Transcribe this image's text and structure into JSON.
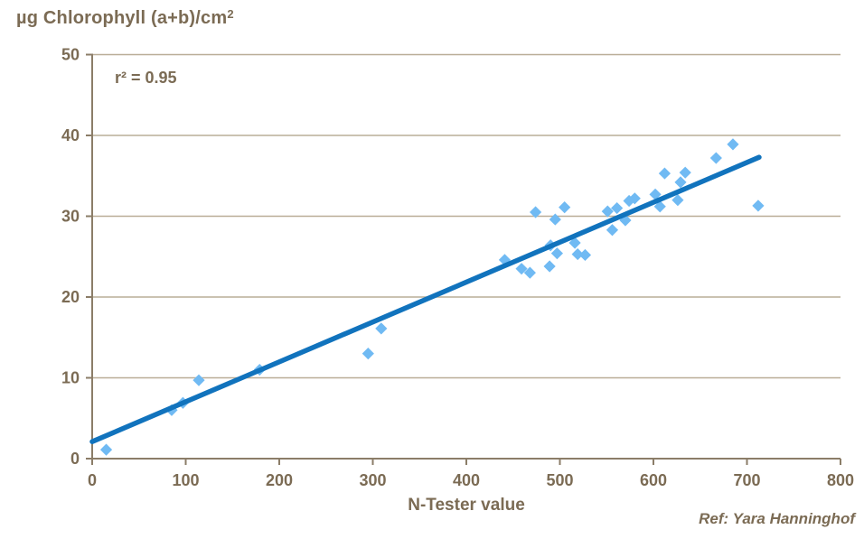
{
  "header": {
    "title_main": "µg Chlorophyll (a+b)/cm",
    "title_superscript": "2"
  },
  "annotation": {
    "r_squared": "r² = 0.95"
  },
  "footer": {
    "reference": "Ref: Yara Hanninghof"
  },
  "colors": {
    "text": "#7b6b54",
    "axis": "#8b7d68",
    "grid": "#b9ad97",
    "marker": "#70baf3",
    "trend": "#1173bd",
    "background": "#ffffff"
  },
  "chart_data": {
    "type": "scatter",
    "title": "µg Chlorophyll (a+b)/cm²",
    "xlabel": "N-Tester value",
    "ylabel": "µg Chlorophyll (a+b)/cm²",
    "xlim": [
      0,
      800
    ],
    "ylim": [
      0,
      50
    ],
    "x_ticks": [
      0,
      100,
      200,
      300,
      400,
      500,
      600,
      700,
      800
    ],
    "y_ticks": [
      0,
      10,
      20,
      30,
      40,
      50
    ],
    "grid": "horizontal-only",
    "legend": "none",
    "annotation_text": "r² = 0.95",
    "reference_text": "Ref: Yara Hanninghof",
    "series": [
      {
        "name": "chlorophyll-measurements",
        "type": "scatter",
        "marker": "diamond",
        "color": "#70baf3",
        "points": [
          [
            15,
            1.1
          ],
          [
            85,
            6.0
          ],
          [
            97,
            6.9
          ],
          [
            114,
            9.7
          ],
          [
            179,
            11.0
          ],
          [
            295,
            13.0
          ],
          [
            309,
            16.1
          ],
          [
            441,
            24.6
          ],
          [
            459,
            23.5
          ],
          [
            468,
            23.0
          ],
          [
            474,
            30.5
          ],
          [
            489,
            23.8
          ],
          [
            490,
            26.4
          ],
          [
            495,
            29.6
          ],
          [
            497,
            25.4
          ],
          [
            505,
            31.1
          ],
          [
            516,
            26.7
          ],
          [
            519,
            25.3
          ],
          [
            527,
            25.2
          ],
          [
            551,
            30.6
          ],
          [
            556,
            28.3
          ],
          [
            561,
            31.0
          ],
          [
            570,
            29.5
          ],
          [
            574,
            31.9
          ],
          [
            580,
            32.2
          ],
          [
            602,
            32.7
          ],
          [
            607,
            31.2
          ],
          [
            612,
            35.3
          ],
          [
            626,
            32.0
          ],
          [
            629,
            34.2
          ],
          [
            634,
            35.4
          ],
          [
            667,
            37.2
          ],
          [
            685,
            38.9
          ],
          [
            712,
            31.3
          ]
        ]
      },
      {
        "name": "linear-trend",
        "type": "line",
        "color": "#1173bd",
        "points": [
          [
            0,
            2.1
          ],
          [
            713,
            37.3
          ]
        ]
      }
    ]
  }
}
